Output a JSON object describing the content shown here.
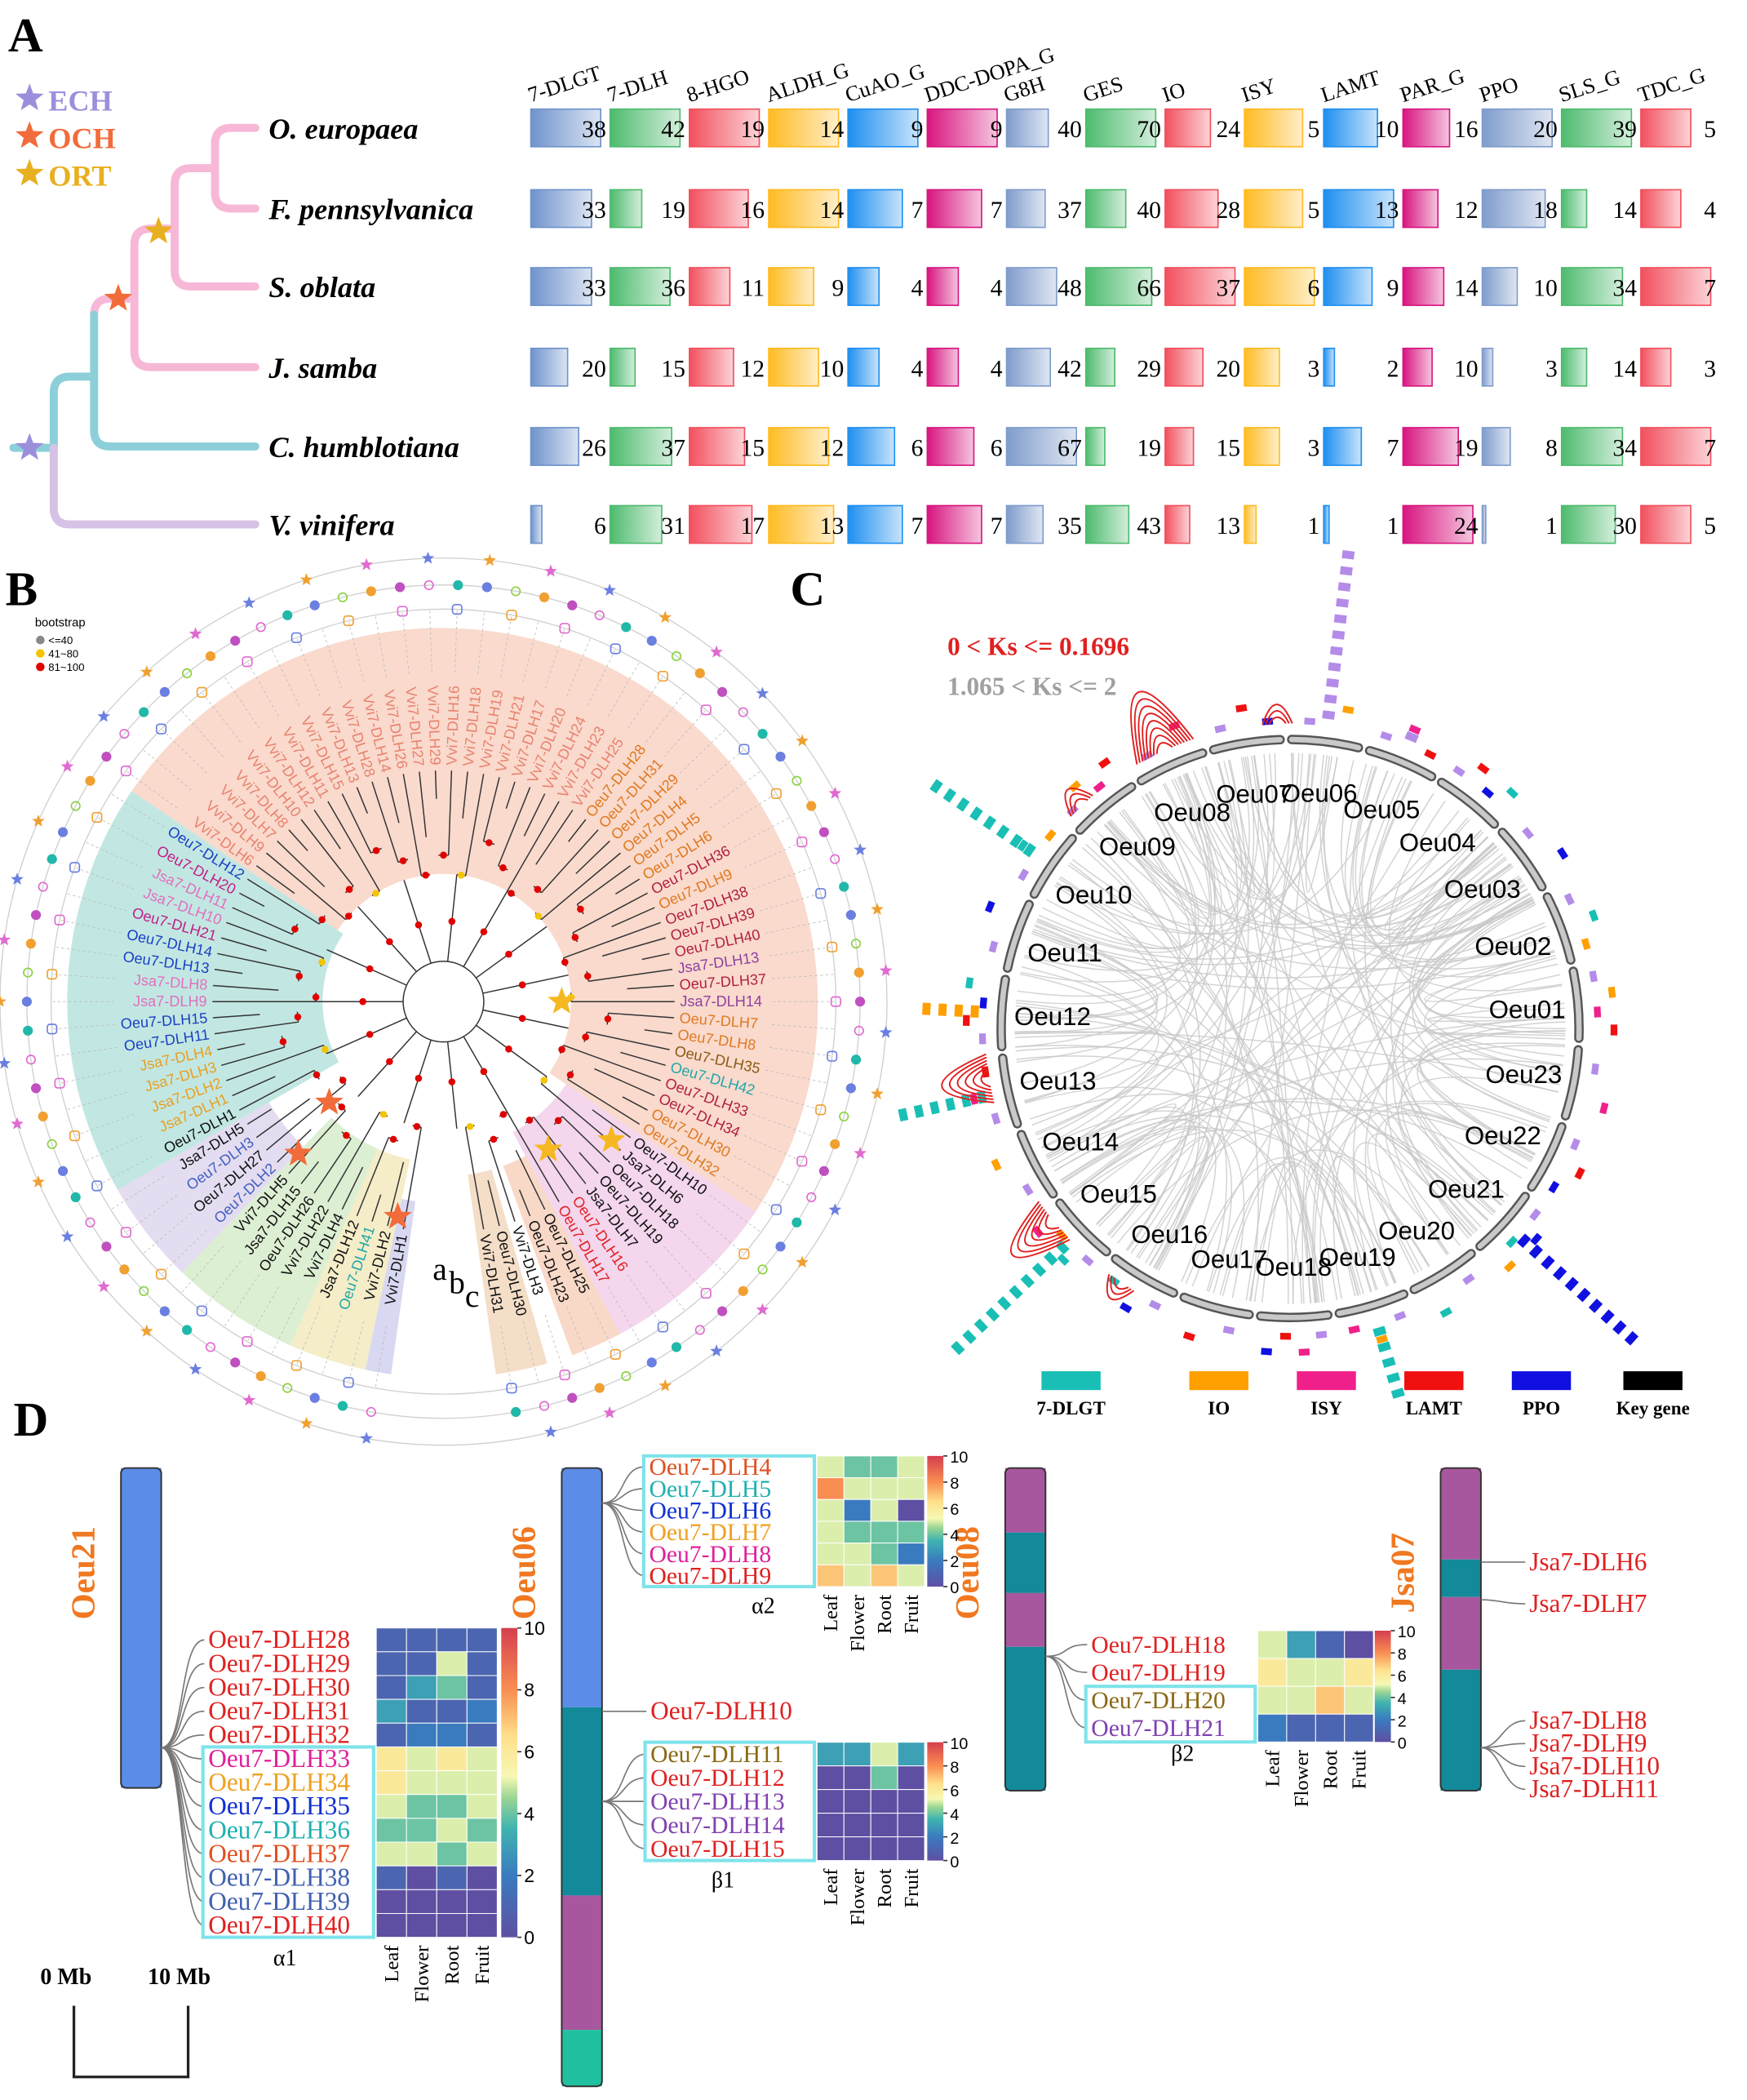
{
  "panel_a": {
    "label": "A",
    "legend": [
      {
        "label": "ECH",
        "color": "#9b8fdc"
      },
      {
        "label": "OCH",
        "color": "#f26b3a"
      },
      {
        "label": "ORT",
        "color": "#e8b020"
      }
    ],
    "genes": [
      "7-DLGT",
      "7-DLH",
      "8-HGO",
      "ALDH_G",
      "CuAO_G",
      "DDC-DOPA_G",
      "G8H",
      "GES",
      "IO",
      "ISY",
      "LAMT",
      "PAR_G",
      "PPO",
      "SLS_G",
      "TDC_G"
    ],
    "colors": [
      "#6f93cc",
      "#4dbb6e",
      "#f2505e",
      "#ffbb22",
      "#1e8ff0",
      "#d8157f",
      "#7f9ccc",
      "#4dbb6e",
      "#f2505e",
      "#ffbb22",
      "#1e8ff0",
      "#d8157f",
      "#7f9ccc",
      "#4dbb6e",
      "#f2505e"
    ],
    "species": [
      "O. europaea",
      "F. pennsylvanica",
      "S. oblata",
      "J. samba",
      "C. humblotiana",
      "V. vinifera"
    ],
    "values": [
      [
        38,
        42,
        19,
        14,
        9,
        9,
        40,
        70,
        24,
        5,
        10,
        16,
        20,
        39,
        5
      ],
      [
        33,
        19,
        16,
        14,
        7,
        7,
        37,
        40,
        28,
        5,
        13,
        12,
        18,
        14,
        4
      ],
      [
        33,
        36,
        11,
        9,
        4,
        4,
        48,
        66,
        37,
        6,
        9,
        14,
        10,
        34,
        7
      ],
      [
        20,
        15,
        12,
        10,
        4,
        4,
        42,
        29,
        20,
        3,
        2,
        10,
        3,
        14,
        3
      ],
      [
        26,
        37,
        15,
        12,
        6,
        6,
        67,
        19,
        15,
        3,
        7,
        19,
        8,
        34,
        7
      ],
      [
        6,
        31,
        17,
        13,
        7,
        7,
        35,
        43,
        13,
        1,
        1,
        24,
        1,
        30,
        5
      ]
    ]
  },
  "panel_b": {
    "label": "B",
    "legend_title": "bootstrap",
    "legend": [
      {
        "label": "<=40",
        "color": "#888888"
      },
      {
        "label": "41~80",
        "color": "#f5c400"
      },
      {
        "label": "81~100",
        "color": "#e00000"
      }
    ],
    "rings": [
      "a",
      "b",
      "c"
    ],
    "leaves": [
      {
        "label": "Vvi7-DLH1",
        "color": "#111111"
      },
      {
        "label": "Vvi7-DLH2",
        "color": "#111111"
      },
      {
        "label": "Oeu7-DLH41",
        "color": "#20a8a8"
      },
      {
        "label": "Jsa7-DLH12",
        "color": "#111111"
      },
      {
        "label": "Vvi7-DLH4",
        "color": "#111111"
      },
      {
        "label": "Vvi7-DLH22",
        "color": "#111111"
      },
      {
        "label": "Oeu7-DLH26",
        "color": "#111111"
      },
      {
        "label": "Jsa7-DLH15",
        "color": "#111111"
      },
      {
        "label": "Vvi7-DLH5",
        "color": "#111111"
      },
      {
        "label": "Oeu7-DLH2",
        "color": "#4060c0"
      },
      {
        "label": "Oeu7-DLH27",
        "color": "#111111"
      },
      {
        "label": "Oeu7-DLH3",
        "color": "#4060c0"
      },
      {
        "label": "Jsa7-DLH5",
        "color": "#111111"
      },
      {
        "label": "Oeu7-DLH1",
        "color": "#111111"
      },
      {
        "label": "Jsa7-DLH1",
        "color": "#e8a020"
      },
      {
        "label": "Jsa7-DLH2",
        "color": "#e8a020"
      },
      {
        "label": "Jsa7-DLH3",
        "color": "#e8a020"
      },
      {
        "label": "Jsa7-DLH4",
        "color": "#e8a020"
      },
      {
        "label": "Oeu7-DLH11",
        "color": "#1a3fc4"
      },
      {
        "label": "Oeu7-DLH15",
        "color": "#1a3fc4"
      },
      {
        "label": "Jsa7-DLH9",
        "color": "#e070c0"
      },
      {
        "label": "Jsa7-DLH8",
        "color": "#e070c0"
      },
      {
        "label": "Oeu7-DLH13",
        "color": "#1a3fc4"
      },
      {
        "label": "Oeu7-DLH14",
        "color": "#1a3fc4"
      },
      {
        "label": "Oeu7-DLH21",
        "color": "#c0208a"
      },
      {
        "label": "Jsa7-DLH10",
        "color": "#e070c0"
      },
      {
        "label": "Jsa7-DLH11",
        "color": "#e070c0"
      },
      {
        "label": "Oeu7-DLH20",
        "color": "#c0208a"
      },
      {
        "label": "Oeu7-DLH12",
        "color": "#1a3fc4"
      },
      {
        "label": "Vvi7-DLH6",
        "color": "#e9826f"
      },
      {
        "label": "Vvi7-DLH9",
        "color": "#e9826f"
      },
      {
        "label": "Vvi7-DLH7",
        "color": "#e9826f"
      },
      {
        "label": "Vvi7-DLH8",
        "color": "#e9826f"
      },
      {
        "label": "Vvi7-DLH10",
        "color": "#e9826f"
      },
      {
        "label": "Vvi7-DLH12",
        "color": "#e9826f"
      },
      {
        "label": "Vvi7-DLH11",
        "color": "#e9826f"
      },
      {
        "label": "Vvi7-DLH15",
        "color": "#e9826f"
      },
      {
        "label": "Vvi7-DLH13",
        "color": "#e9826f"
      },
      {
        "label": "Vvi7-DLH28",
        "color": "#e9826f"
      },
      {
        "label": "Vvi7-DLH14",
        "color": "#e9826f"
      },
      {
        "label": "Vvi7-DLH26",
        "color": "#e9826f"
      },
      {
        "label": "Vvi7-DLH27",
        "color": "#e9826f"
      },
      {
        "label": "Vvi7-DLH29",
        "color": "#e9826f"
      },
      {
        "label": "Vvi7-DLH16",
        "color": "#e9826f"
      },
      {
        "label": "Vvi7-DLH18",
        "color": "#e9826f"
      },
      {
        "label": "Vvi7-DLH19",
        "color": "#e9826f"
      },
      {
        "label": "Vvi7-DLH21",
        "color": "#e9826f"
      },
      {
        "label": "Vvi7-DLH17",
        "color": "#e9826f"
      },
      {
        "label": "Vvi7-DLH20",
        "color": "#e9826f"
      },
      {
        "label": "Vvi7-DLH24",
        "color": "#e9826f"
      },
      {
        "label": "Vvi7-DLH23",
        "color": "#e9826f"
      },
      {
        "label": "Vvi7-DLH25",
        "color": "#e9826f"
      },
      {
        "label": "Oeu7-DLH28",
        "color": "#e07820"
      },
      {
        "label": "Oeu7-DLH31",
        "color": "#e07820"
      },
      {
        "label": "Oeu7-DLH29",
        "color": "#e07820"
      },
      {
        "label": "Oeu7-DLH4",
        "color": "#e07820"
      },
      {
        "label": "Oeu7-DLH5",
        "color": "#e07820"
      },
      {
        "label": "Oeu7-DLH6",
        "color": "#e07820"
      },
      {
        "label": "Oeu7-DLH36",
        "color": "#b02040"
      },
      {
        "label": "Oeu7-DLH9",
        "color": "#e07820"
      },
      {
        "label": "Oeu7-DLH38",
        "color": "#b02040"
      },
      {
        "label": "Oeu7-DLH39",
        "color": "#b02040"
      },
      {
        "label": "Oeu7-DLH40",
        "color": "#b02040"
      },
      {
        "label": "Jsa7-DLH13",
        "color": "#9040a0"
      },
      {
        "label": "Oeu7-DLH37",
        "color": "#b02040"
      },
      {
        "label": "Jsa7-DLH14",
        "color": "#9040a0"
      },
      {
        "label": "Oeu7-DLH7",
        "color": "#e07820"
      },
      {
        "label": "Oeu7-DLH8",
        "color": "#e07820"
      },
      {
        "label": "Oeu7-DLH35",
        "color": "#8b5a14"
      },
      {
        "label": "Oeu7-DLH42",
        "color": "#20a8a8"
      },
      {
        "label": "Oeu7-DLH33",
        "color": "#b02040"
      },
      {
        "label": "Oeu7-DLH34",
        "color": "#b02040"
      },
      {
        "label": "Oeu7-DLH30",
        "color": "#e07820"
      },
      {
        "label": "Oeu7-DLH32",
        "color": "#e07820"
      },
      {
        "label": "Oeu7-DLH10",
        "color": "#111111"
      },
      {
        "label": "Jsa7-DLH6",
        "color": "#111111"
      },
      {
        "label": "Oeu7-DLH18",
        "color": "#111111"
      },
      {
        "label": "Oeu7-DLH19",
        "color": "#111111"
      },
      {
        "label": "Jsa7-DLH7",
        "color": "#111111"
      },
      {
        "label": "Oeu7-DLH16",
        "color": "#e02020"
      },
      {
        "label": "Oeu7-DLH17",
        "color": "#e02020"
      },
      {
        "label": "Oeu7-DLH25",
        "color": "#111111"
      },
      {
        "label": "Oeu7-DLH23",
        "color": "#111111"
      },
      {
        "label": "Vvi7-DLH3",
        "color": "#111111"
      },
      {
        "label": "Oeu7-DLH30",
        "color": "#111111"
      },
      {
        "label": "Vvi7-DLH31",
        "color": "#111111"
      }
    ]
  },
  "panel_c": {
    "label": "C",
    "ks_labels": [
      {
        "label": "0 < Ks <= 0.1696",
        "color": "#e02020"
      },
      {
        "label": "1.065 < Ks <= 2",
        "color": "#a0a0a0"
      }
    ],
    "chromosomes": [
      "Oeu06",
      "Oeu05",
      "Oeu04",
      "Oeu03",
      "Oeu02",
      "Oeu01",
      "Oeu23",
      "Oeu22",
      "Oeu21",
      "Oeu20",
      "Oeu19",
      "Oeu18",
      "Oeu17",
      "Oeu16",
      "Oeu15",
      "Oeu14",
      "Oeu13",
      "Oeu12",
      "Oeu11",
      "Oeu10",
      "Oeu09",
      "Oeu08",
      "Oeu07"
    ],
    "legend": [
      {
        "label": "7-DLGT",
        "color": "#19bfb5"
      },
      {
        "label": "IO",
        "color": "#ff9f00"
      },
      {
        "label": "ISY",
        "color": "#f0208a"
      },
      {
        "label": "LAMT",
        "color": "#f01010"
      },
      {
        "label": "PPO",
        "color": "#1010e0"
      },
      {
        "label": "Key gene",
        "color": "#000000"
      }
    ]
  },
  "panel_d": {
    "label": "D",
    "chromosomes": [
      {
        "label": "Oeu21",
        "color": "#f07820"
      },
      {
        "label": "Oeu06",
        "color": "#f07820"
      },
      {
        "label": "Oeu08",
        "color": "#f07820"
      },
      {
        "label": "Jsa07",
        "color": "#f07820"
      }
    ],
    "heatmaps": [
      {
        "label": "α1",
        "columns": [
          "Leaf",
          "Flower",
          "Root",
          "Fruit"
        ],
        "clim": [
          0,
          10
        ],
        "ticks": [
          0,
          2,
          4,
          6,
          8,
          10
        ],
        "genes": [
          {
            "label": "Oeu7-DLH28",
            "color": "#e02020"
          },
          {
            "label": "Oeu7-DLH29",
            "color": "#e02020"
          },
          {
            "label": "Oeu7-DLH30",
            "color": "#e02020"
          },
          {
            "label": "Oeu7-DLH31",
            "color": "#e02020"
          },
          {
            "label": "Oeu7-DLH32",
            "color": "#e02020"
          },
          {
            "label": "Oeu7-DLH33",
            "color": "#e0209a"
          },
          {
            "label": "Oeu7-DLH34",
            "color": "#f0a020"
          },
          {
            "label": "Oeu7-DLH35",
            "color": "#1030d0"
          },
          {
            "label": "Oeu7-DLH36",
            "color": "#20b0b0"
          },
          {
            "label": "Oeu7-DLH37",
            "color": "#e05020"
          },
          {
            "label": "Oeu7-DLH38",
            "color": "#4060b0"
          },
          {
            "label": "Oeu7-DLH39",
            "color": "#4060b0"
          },
          {
            "label": "Oeu7-DLH40",
            "color": "#e02020"
          }
        ],
        "values": [
          [
            1,
            1,
            1,
            1
          ],
          [
            1,
            1,
            5,
            1
          ],
          [
            1,
            3,
            4,
            1
          ],
          [
            3,
            1,
            1,
            2
          ],
          [
            1,
            2,
            2,
            1
          ],
          [
            6,
            5,
            6,
            5
          ],
          [
            6,
            5,
            5,
            5
          ],
          [
            5,
            4,
            4,
            5
          ],
          [
            4,
            4,
            5,
            4
          ],
          [
            5,
            5,
            4,
            5
          ],
          [
            1,
            0,
            1,
            0
          ],
          [
            0,
            0,
            0,
            0
          ],
          [
            0,
            0,
            0,
            0
          ]
        ]
      },
      {
        "label": "α2",
        "columns": [
          "Leaf",
          "Flower",
          "Root",
          "Fruit"
        ],
        "clim": [
          0,
          10
        ],
        "ticks": [
          0,
          2,
          4,
          6,
          8,
          10
        ],
        "genes": [
          {
            "label": "Oeu7-DLH4",
            "color": "#e05020"
          },
          {
            "label": "Oeu7-DLH5",
            "color": "#20b0b0"
          },
          {
            "label": "Oeu7-DLH6",
            "color": "#1030d0"
          },
          {
            "label": "Oeu7-DLH7",
            "color": "#f0a020"
          },
          {
            "label": "Oeu7-DLH8",
            "color": "#e0209a"
          },
          {
            "label": "Oeu7-DLH9",
            "color": "#e02020"
          }
        ],
        "values": [
          [
            5,
            4,
            4,
            5
          ],
          [
            8,
            5,
            5,
            5
          ],
          [
            5,
            2,
            5,
            0
          ],
          [
            5,
            4,
            4,
            4
          ],
          [
            5,
            5,
            4,
            2
          ],
          [
            7,
            5,
            7,
            5
          ]
        ]
      },
      {
        "label": "β1",
        "columns": [
          "Leaf",
          "Flower",
          "Root",
          "Fruit"
        ],
        "clim": [
          0,
          10
        ],
        "ticks": [
          0,
          2,
          4,
          6,
          8,
          10
        ],
        "genes": [
          {
            "label": "Oeu7-DLH11",
            "color": "#8b6914"
          },
          {
            "label": "Oeu7-DLH12",
            "color": "#e02020"
          },
          {
            "label": "Oeu7-DLH13",
            "color": "#8040b0"
          },
          {
            "label": "Oeu7-DLH14",
            "color": "#8040b0"
          },
          {
            "label": "Oeu7-DLH15",
            "color": "#e02020"
          }
        ],
        "values": [
          [
            3,
            3,
            5,
            3
          ],
          [
            0,
            0,
            4,
            0
          ],
          [
            0,
            0,
            0,
            0
          ],
          [
            0,
            0,
            0,
            0
          ],
          [
            0,
            0,
            0,
            0
          ]
        ]
      },
      {
        "label": "β2",
        "columns": [
          "Leaf",
          "Flower",
          "Root",
          "Fruit"
        ],
        "clim": [
          0,
          10
        ],
        "ticks": [
          0,
          2,
          4,
          6,
          8,
          10
        ],
        "genes": [
          {
            "label": "Oeu7-DLH18",
            "color": "#e02020"
          },
          {
            "label": "Oeu7-DLH19",
            "color": "#e02020"
          },
          {
            "label": "Oeu7-DLH20",
            "color": "#8b6914"
          },
          {
            "label": "Oeu7-DLH21",
            "color": "#8040b0"
          }
        ],
        "values": [
          [
            5,
            3,
            1,
            0
          ],
          [
            6,
            5,
            5,
            6
          ],
          [
            5,
            5,
            7,
            5
          ],
          [
            2,
            1,
            1,
            1
          ]
        ]
      }
    ],
    "other_genes": [
      {
        "label": "Oeu7-DLH10",
        "color": "#e02020"
      },
      {
        "label": "Jsa7-DLH6",
        "color": "#e02020"
      },
      {
        "label": "Jsa7-DLH7",
        "color": "#e02020"
      },
      {
        "label": "Jsa7-DLH8",
        "color": "#e02020"
      },
      {
        "label": "Jsa7-DLH9",
        "color": "#e02020"
      },
      {
        "label": "Jsa7-DLH10",
        "color": "#e02020"
      },
      {
        "label": "Jsa7-DLH11",
        "color": "#e02020"
      }
    ],
    "scale": [
      "0 Mb",
      "10 Mb"
    ]
  }
}
